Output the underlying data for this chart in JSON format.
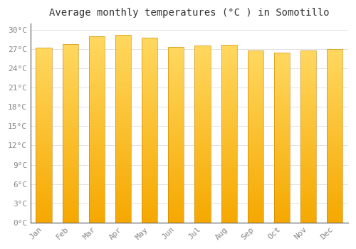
{
  "title": "Average monthly temperatures (°C ) in Somotillo",
  "months": [
    "Jan",
    "Feb",
    "Mar",
    "Apr",
    "May",
    "Jun",
    "Jul",
    "Aug",
    "Sep",
    "Oct",
    "Nov",
    "Dec"
  ],
  "values": [
    27.2,
    27.8,
    29.0,
    29.3,
    28.8,
    27.4,
    27.6,
    27.7,
    26.8,
    26.5,
    26.8,
    27.0
  ],
  "bar_color_main": "#F5A800",
  "bar_color_light": "#FFC830",
  "bar_color_lighter": "#FFD84D",
  "background_color": "#FFFFFF",
  "grid_color": "#DDDDDD",
  "ylim": [
    0,
    31
  ],
  "ytick_step": 3,
  "title_fontsize": 10,
  "tick_fontsize": 8,
  "tick_color": "#888888",
  "title_font": "monospace",
  "bar_width": 0.6
}
